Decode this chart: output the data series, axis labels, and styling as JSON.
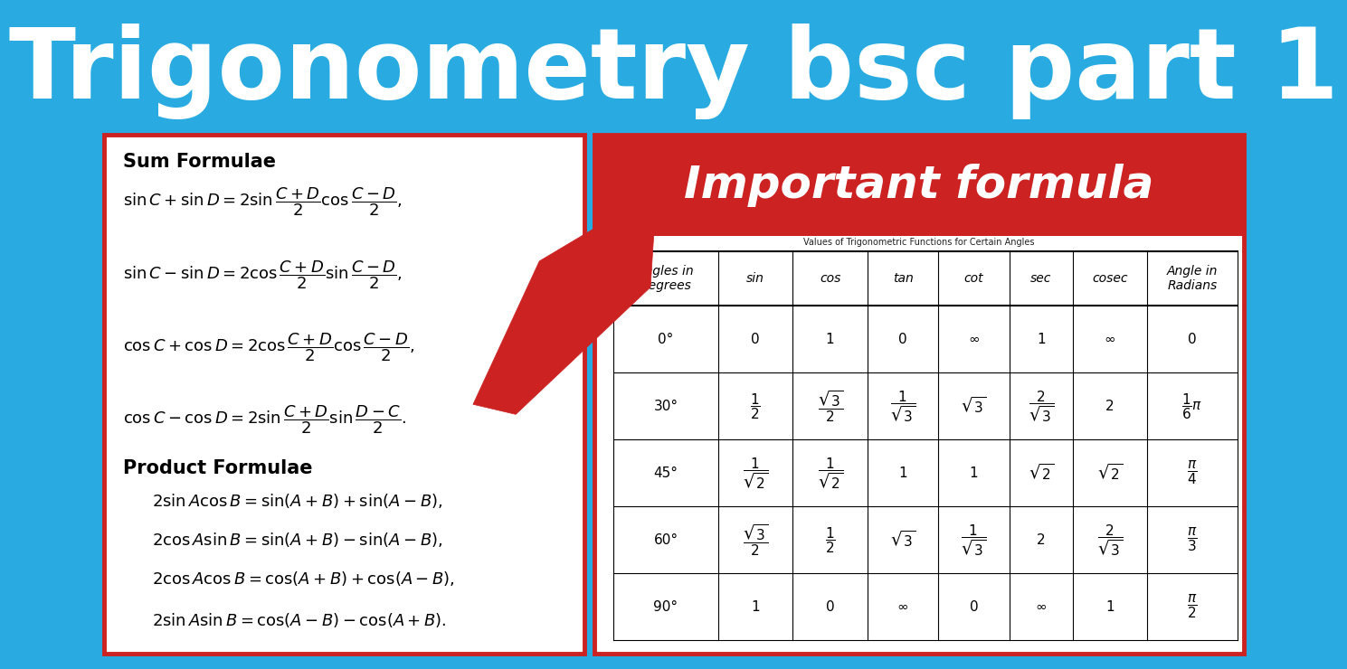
{
  "title": "Trigonometry bsc part 1",
  "title_bg": "#29ABE2",
  "title_color": "#FFFFFF",
  "important_label": "Important formula",
  "important_bg": "#CC2222",
  "important_color": "#FFFFFF",
  "left_panel_bg": "#FFFFFF",
  "left_panel_border": "#CC2222",
  "right_panel_bg": "#FFFFFF",
  "right_panel_border": "#CC2222",
  "arrow_color": "#CC2222",
  "table_title": "Values of Trigonometric Functions for Certain Angles",
  "table_headers": [
    "Angles in\nDegrees",
    "sin",
    "cos",
    "tan",
    "cot",
    "sec",
    "cosec",
    "Angle in\nRadians"
  ],
  "table_rows": [
    [
      "0°",
      "0",
      "1",
      "0",
      "∞",
      "1",
      "∞",
      "0"
    ],
    [
      "30°",
      "$\\dfrac{1}{2}$",
      "$\\dfrac{\\sqrt{3}}{2}$",
      "$\\dfrac{1}{\\sqrt{3}}$",
      "$\\sqrt{3}$",
      "$\\dfrac{2}{\\sqrt{3}}$",
      "2",
      "$\\dfrac{1}{6}\\pi$"
    ],
    [
      "45°",
      "$\\dfrac{1}{\\sqrt{2}}$",
      "$\\dfrac{1}{\\sqrt{2}}$",
      "1",
      "1",
      "$\\sqrt{2}$",
      "$\\sqrt{2}$",
      "$\\dfrac{\\pi}{4}$"
    ],
    [
      "60°",
      "$\\dfrac{\\sqrt{3}}{2}$",
      "$\\dfrac{1}{2}$",
      "$\\sqrt{3}$",
      "$\\dfrac{1}{\\sqrt{3}}$",
      "2",
      "$\\dfrac{2}{\\sqrt{3}}$",
      "$\\dfrac{\\pi}{3}$"
    ],
    [
      "90°",
      "1",
      "0",
      "∞",
      "0",
      "∞",
      "1",
      "$\\dfrac{\\pi}{2}$"
    ]
  ],
  "sum_formulae_title": "Sum Formulae",
  "sum_formulae": [
    "$\\sin C + \\sin D = 2\\sin \\dfrac{C+D}{2}\\cos \\dfrac{C-D}{2},$",
    "$\\sin C - \\sin D = 2\\cos \\dfrac{C+D}{2}\\sin \\dfrac{C-D}{2},$",
    "$\\cos C + \\cos D = 2\\cos \\dfrac{C+D}{2}\\cos \\dfrac{C-D}{2},$",
    "$\\cos C - \\cos D = 2\\sin \\dfrac{C+D}{2}\\sin \\dfrac{D-C}{2}.$"
  ],
  "product_formulae_title": "Product Formulae",
  "product_formulae": [
    "$2\\sin A \\cos B = \\sin (A+B) + \\sin (A-B),$",
    "$2\\cos A \\sin B = \\sin (A+B) - \\sin (A-B),$",
    "$2\\cos A \\cos B = \\cos (A+B) + \\cos (A-B),$",
    "$2\\sin A \\sin B = \\cos (A-B) - \\cos (A+B).$"
  ],
  "title_fontsize": 78,
  "banner_fontsize": 36,
  "formula_fontsize": 13,
  "heading_fontsize": 15,
  "table_cell_fontsize": 11,
  "table_header_fontsize": 10
}
